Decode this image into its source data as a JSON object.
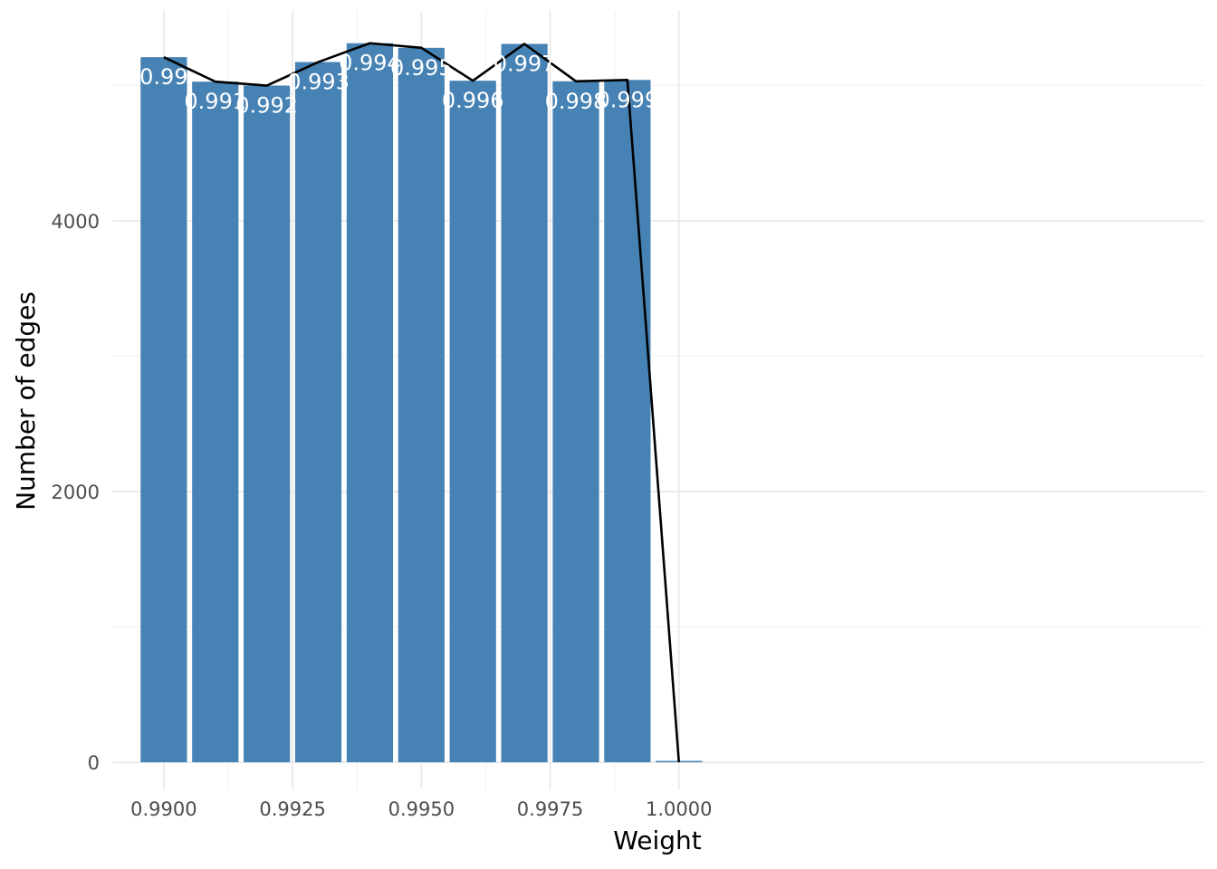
{
  "chart_data": {
    "type": "bar",
    "xlabel": "Weight",
    "ylabel": "Number of edges",
    "x": [
      0.99,
      0.991,
      0.992,
      0.993,
      0.994,
      0.995,
      0.996,
      0.997,
      0.998,
      0.999,
      1.0
    ],
    "values": [
      5208,
      5027,
      4998,
      5172,
      5311,
      5277,
      5034,
      5306,
      5030,
      5040,
      0
    ],
    "bar_labels": [
      "0.99",
      "0.991",
      "0.992",
      "0.993",
      "0.994",
      "0.995",
      "0.996",
      "0.997",
      "0.998",
      "0.999",
      ""
    ],
    "line_values": [
      5208,
      5027,
      4998,
      5172,
      5311,
      5277,
      5034,
      5306,
      5030,
      5040,
      0
    ],
    "x_ticks": [
      0.99,
      0.9925,
      0.995,
      0.9975,
      1.0
    ],
    "x_tick_labels": [
      "0.9900",
      "0.9925",
      "0.9950",
      "0.9975",
      "1.0000"
    ],
    "y_ticks": [
      0,
      2000,
      4000
    ],
    "y_tick_labels": [
      "0",
      "2000",
      "4000"
    ],
    "xlim": [
      0.989,
      1.0102
    ],
    "ylim": [
      -200,
      5550
    ],
    "grid": true,
    "legend": "none",
    "colors": {
      "bar": "#4682b4",
      "line": "#000000",
      "bar_label": "#ffffff"
    }
  }
}
